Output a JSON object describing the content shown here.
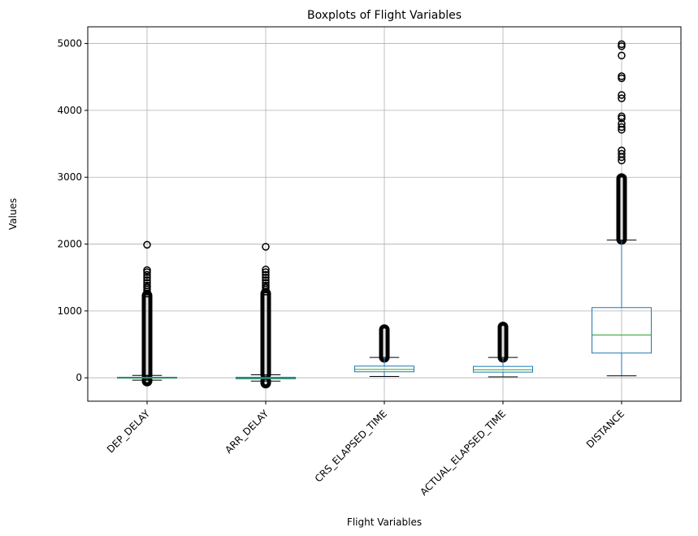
{
  "chart_data": {
    "type": "boxplot",
    "title": "Boxplots of Flight Variables",
    "xlabel": "Flight Variables",
    "ylabel": "Values",
    "ylim": [
      -350,
      5250
    ],
    "yticks": [
      0,
      1000,
      2000,
      3000,
      4000,
      5000
    ],
    "grid": true,
    "categories": [
      "DEP_DELAY",
      "ARR_DELAY",
      "CRS_ELAPSED_TIME",
      "ACTUAL_ELAPSED_TIME",
      "DISTANCE"
    ],
    "boxes": [
      {
        "name": "DEP_DELAY",
        "whisker_low": -35,
        "q1": -6,
        "median": -2,
        "q3": 8,
        "whisker_high": 35,
        "outliers_dense": [
          [
            -50,
            -36
          ],
          [
            36,
            1230
          ]
        ],
        "outliers": [
          1260,
          1290,
          1320,
          1350,
          1380,
          1420,
          1460,
          1500,
          1540,
          1580,
          1610,
          1990
        ]
      },
      {
        "name": "ARR_DELAY",
        "whisker_low": -50,
        "q1": -15,
        "median": -6,
        "q3": 8,
        "whisker_high": 45,
        "outliers_dense": [
          [
            -80,
            -51
          ],
          [
            46,
            1260
          ]
        ],
        "outliers": [
          1290,
          1320,
          1350,
          1380,
          1420,
          1460,
          1500,
          1540,
          1580,
          1620,
          1960
        ]
      },
      {
        "name": "CRS_ELAPSED_TIME",
        "whisker_low": 20,
        "q1": 90,
        "median": 125,
        "q3": 175,
        "whisker_high": 305,
        "outliers_dense": [
          [
            306,
            720
          ]
        ],
        "outliers": []
      },
      {
        "name": "ACTUAL_ELAPSED_TIME",
        "whisker_low": 15,
        "q1": 85,
        "median": 120,
        "q3": 170,
        "whisker_high": 305,
        "outliers_dense": [
          [
            306,
            760
          ]
        ],
        "outliers": []
      },
      {
        "name": "DISTANCE",
        "whisker_low": 30,
        "q1": 370,
        "median": 640,
        "q3": 1050,
        "whisker_high": 2060,
        "outliers_dense": [
          [
            2070,
            2980
          ]
        ],
        "outliers": [
          3250,
          3300,
          3350,
          3400,
          3710,
          3750,
          3800,
          3880,
          3910,
          4180,
          4230,
          4480,
          4510,
          4820,
          4960,
          4990
        ]
      }
    ],
    "colors": {
      "box": "#1f77b4",
      "median": "#2ca02c",
      "whisker": "#000000",
      "flier": "#000000",
      "grid": "#b0b0b0"
    }
  }
}
